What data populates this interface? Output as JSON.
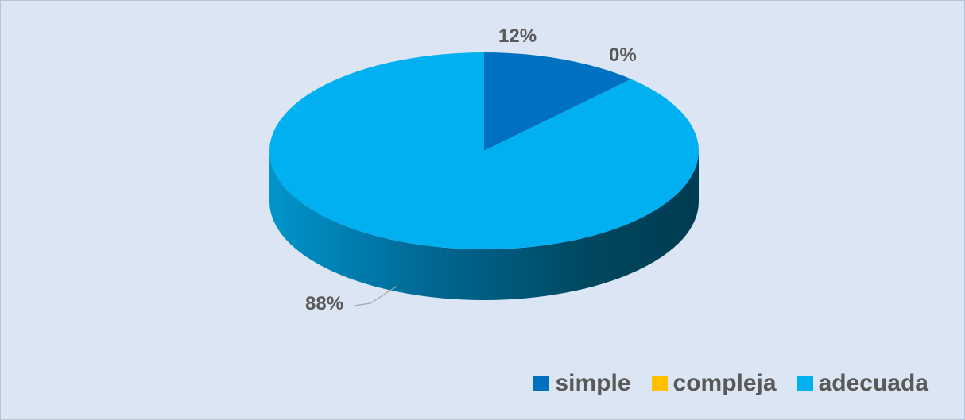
{
  "chart_data": {
    "type": "pie",
    "categories": [
      "simple",
      "compleja",
      "adecuada"
    ],
    "values": [
      12,
      0,
      88
    ],
    "data_labels": [
      "12%",
      "0%",
      "88%"
    ],
    "colors": [
      "#0070c0",
      "#ffc000",
      "#00b0f0"
    ],
    "background_color": "#dbe5f3",
    "legend_position": "bottom-right",
    "style": "3d"
  },
  "legend": {
    "items": [
      {
        "label": "simple",
        "color": "#0070c0"
      },
      {
        "label": "compleja",
        "color": "#ffc000"
      },
      {
        "label": "adecuada",
        "color": "#00b0f0"
      }
    ]
  }
}
